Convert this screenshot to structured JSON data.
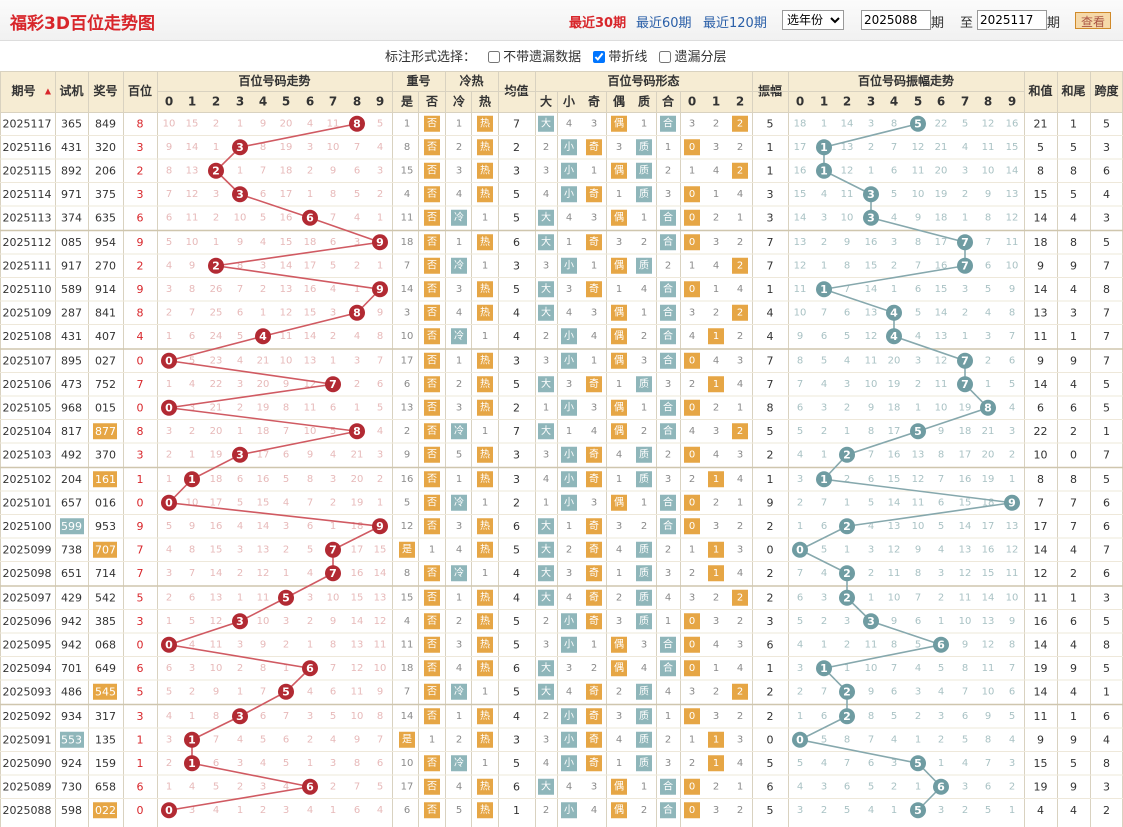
{
  "header": {
    "title": "福彩3D百位走势图",
    "nav": [
      "最近30期",
      "最近60期",
      "最近120期"
    ],
    "active_nav": 0,
    "year_select": "选年份",
    "from_issue": "2025088",
    "to_issue": "2025117",
    "qi_label": "期",
    "to_label": "至",
    "query": "查看"
  },
  "options": {
    "prompt": "标注形式选择：",
    "items": [
      {
        "label": "不带遗漏数据",
        "checked": false
      },
      {
        "label": "带折线",
        "checked": true
      },
      {
        "label": "遗漏分层",
        "checked": false
      }
    ]
  },
  "table": {
    "h_issue": "期号",
    "h_test": "试机",
    "h_prize": "奖号",
    "h_hundred": "百位",
    "g_trend": "百位号码走势",
    "g_repeat": "重号",
    "g_hotcold": "冷热",
    "h_avg": "均值",
    "g_form": "百位号码形态",
    "h_amp": "振幅",
    "g_amptrend": "百位号码振幅走势",
    "h_sum": "和值",
    "h_tail": "和尾",
    "h_span": "跨度",
    "repeat_cols": [
      "是",
      "否"
    ],
    "hotcold_cols": [
      "冷",
      "热"
    ],
    "form_cols": [
      "大",
      "小",
      "奇",
      "偶",
      "质",
      "合",
      "0",
      "1",
      "2"
    ],
    "digits": [
      "0",
      "1",
      "2",
      "3",
      "4",
      "5",
      "6",
      "7",
      "8",
      "9"
    ],
    "rows": [
      {
        "issue": "2025117",
        "test": "365",
        "prize": "849",
        "rs": "0"
      },
      {
        "issue": "2025116",
        "test": "431",
        "prize": "320",
        "rs": "0"
      },
      {
        "issue": "2025115",
        "test": "892",
        "prize": "206",
        "rs": "0"
      },
      {
        "issue": "2025114",
        "test": "971",
        "prize": "375",
        "rs": "0"
      },
      {
        "issue": "2025113",
        "test": "374",
        "prize": "635",
        "rs": "0"
      },
      {
        "issue": "2025112",
        "test": "085",
        "prize": "954",
        "rs": "0"
      },
      {
        "issue": "2025111",
        "test": "917",
        "prize": "270",
        "rs": "0"
      },
      {
        "issue": "2025110",
        "test": "589",
        "prize": "914",
        "rs": "0"
      },
      {
        "issue": "2025109",
        "test": "287",
        "prize": "841",
        "rs": "0"
      },
      {
        "issue": "2025108",
        "test": "431",
        "prize": "407",
        "rs": "0"
      },
      {
        "issue": "2025107",
        "test": "895",
        "prize": "027",
        "rs": "0"
      },
      {
        "issue": "2025106",
        "test": "473",
        "prize": "752",
        "rs": "0"
      },
      {
        "issue": "2025105",
        "test": "968",
        "prize": "015",
        "rs": "0"
      },
      {
        "issue": "2025104",
        "test": "817",
        "prize": "877",
        "rs": "1"
      },
      {
        "issue": "2025103",
        "test": "492",
        "prize": "370",
        "rs": "0"
      },
      {
        "issue": "2025102",
        "test": "204",
        "prize": "161",
        "rs": "1"
      },
      {
        "issue": "2025101",
        "test": "657",
        "prize": "016",
        "rs": "0"
      },
      {
        "issue": "2025100",
        "test": "599",
        "prize": "953",
        "rs": "2"
      },
      {
        "issue": "2025099",
        "test": "738",
        "prize": "707",
        "rs": "1"
      },
      {
        "issue": "2025098",
        "test": "651",
        "prize": "714",
        "rs": "0"
      },
      {
        "issue": "2025097",
        "test": "429",
        "prize": "542",
        "rs": "0"
      },
      {
        "issue": "2025096",
        "test": "942",
        "prize": "385",
        "rs": "0"
      },
      {
        "issue": "2025095",
        "test": "942",
        "prize": "068",
        "rs": "0"
      },
      {
        "issue": "2025094",
        "test": "701",
        "prize": "649",
        "rs": "0"
      },
      {
        "issue": "2025093",
        "test": "486",
        "prize": "545",
        "rs": "1"
      },
      {
        "issue": "2025092",
        "test": "934",
        "prize": "317",
        "rs": "0"
      },
      {
        "issue": "2025091",
        "test": "553",
        "prize": "135",
        "rs": "2"
      },
      {
        "issue": "2025090",
        "test": "924",
        "prize": "159",
        "rs": "0"
      },
      {
        "issue": "2025089",
        "test": "730",
        "prize": "658",
        "rs": "0"
      },
      {
        "issue": "2025088",
        "test": "598",
        "prize": "022",
        "rs": "1"
      }
    ]
  },
  "colors": {
    "red": "#d8262b",
    "teal": "#7fa8ad",
    "orange": "#e6a645",
    "teal_tag": "#8fb6ba",
    "header_bg": "#f6ecd3",
    "grid_line": "#d9d2c0",
    "miss_red": "#e7b9b9",
    "miss_teal": "#a9c2c4",
    "miss_gray": "#8a8a8a"
  }
}
